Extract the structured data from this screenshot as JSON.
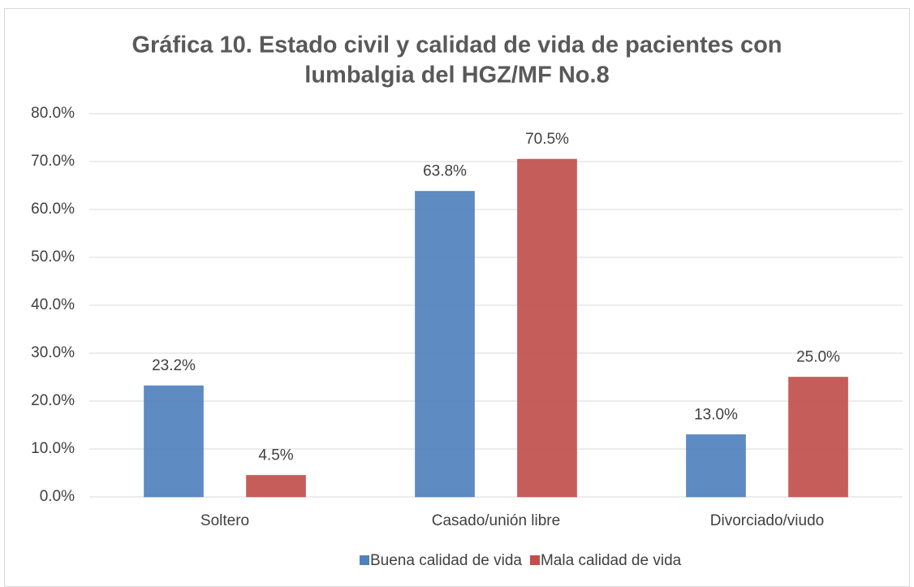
{
  "chart_data": {
    "type": "bar",
    "title": [
      "Gráfica 10. Estado civil y calidad de vida de pacientes con",
      "lumbalgia del HGZ/MF No.8"
    ],
    "categories": [
      "Soltero",
      "Casado/unión libre",
      "Divorciado/viudo"
    ],
    "series": [
      {
        "name": "Buena calidad de vida",
        "color": "#4f81bd",
        "values": [
          23.2,
          63.8,
          13.0
        ],
        "value_labels": [
          "23.2%",
          "63.8%",
          "13.0%"
        ]
      },
      {
        "name": "Mala calidad de vida",
        "color": "#c0504d",
        "values": [
          4.5,
          70.5,
          25.0
        ],
        "value_labels": [
          "4.5%",
          "70.5%",
          "25.0%"
        ]
      }
    ],
    "ylim": [
      0,
      80
    ],
    "yticks": [
      {
        "value": 0,
        "label": "0.0%"
      },
      {
        "value": 10,
        "label": "10.0%"
      },
      {
        "value": 20,
        "label": "20.0%"
      },
      {
        "value": 30,
        "label": "30.0%"
      },
      {
        "value": 40,
        "label": "40.0%"
      },
      {
        "value": 50,
        "label": "50.0%"
      },
      {
        "value": 60,
        "label": "60.0%"
      },
      {
        "value": 70,
        "label": "70.0%"
      },
      {
        "value": 80,
        "label": "80.0%"
      }
    ],
    "grid": true,
    "legend": "bottom"
  }
}
